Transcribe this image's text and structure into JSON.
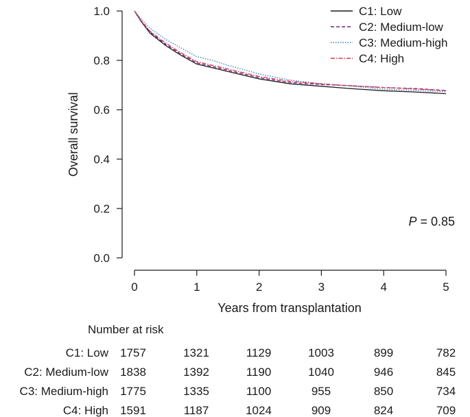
{
  "chart_data": {
    "type": "line",
    "subtype": "kaplan-meier",
    "xlabel": "Years from transplantation",
    "ylabel": "Overall survival",
    "xlim": [
      0,
      5
    ],
    "ylim": [
      0,
      1
    ],
    "xticks": [
      "0",
      "1",
      "2",
      "3",
      "4",
      "5"
    ],
    "yticks": [
      "0.0",
      "0.2",
      "0.4",
      "0.6",
      "0.8",
      "1.0"
    ],
    "legend_position": "top-right",
    "annotation": {
      "italic": "P",
      "text": " = 0.85"
    },
    "series": [
      {
        "name": "C1: Low",
        "color": "#1a1a1a",
        "style": "solid",
        "x": [
          0,
          0.1,
          0.25,
          0.5,
          0.75,
          1.0,
          1.25,
          1.5,
          2.0,
          2.5,
          3.0,
          3.5,
          4.0,
          4.5,
          5.0
        ],
        "y": [
          1.0,
          0.96,
          0.91,
          0.86,
          0.82,
          0.785,
          0.77,
          0.755,
          0.725,
          0.705,
          0.695,
          0.685,
          0.677,
          0.672,
          0.665
        ]
      },
      {
        "name": "C2: Medium-low",
        "color": "#7a1f7a",
        "style": "dashed",
        "x": [
          0,
          0.1,
          0.25,
          0.5,
          0.75,
          1.0,
          1.25,
          1.5,
          2.0,
          2.5,
          3.0,
          3.5,
          4.0,
          4.5,
          5.0
        ],
        "y": [
          1.0,
          0.962,
          0.915,
          0.865,
          0.825,
          0.79,
          0.775,
          0.76,
          0.73,
          0.71,
          0.702,
          0.697,
          0.69,
          0.686,
          0.678
        ]
      },
      {
        "name": "C3: Medium-high",
        "color": "#2f7fc1",
        "style": "dotted",
        "x": [
          0,
          0.1,
          0.25,
          0.5,
          0.75,
          1.0,
          1.25,
          1.5,
          2.0,
          2.5,
          3.0,
          3.5,
          4.0,
          4.5,
          5.0
        ],
        "y": [
          1.0,
          0.97,
          0.93,
          0.885,
          0.85,
          0.815,
          0.8,
          0.78,
          0.745,
          0.72,
          0.705,
          0.695,
          0.683,
          0.678,
          0.673
        ]
      },
      {
        "name": "C4: High",
        "color": "#d6334f",
        "style": "dashdot",
        "x": [
          0,
          0.1,
          0.25,
          0.5,
          0.75,
          1.0,
          1.25,
          1.5,
          2.0,
          2.5,
          3.0,
          3.5,
          4.0,
          4.5,
          5.0
        ],
        "y": [
          1.0,
          0.963,
          0.918,
          0.87,
          0.83,
          0.795,
          0.78,
          0.765,
          0.735,
          0.715,
          0.705,
          0.697,
          0.69,
          0.684,
          0.677
        ]
      }
    ],
    "risk_table": {
      "title": "Number at risk",
      "rows": [
        {
          "label": "C1: Low",
          "values": [
            "1757",
            "1321",
            "1129",
            "1003",
            "899",
            "782"
          ]
        },
        {
          "label": "C2: Medium-low",
          "values": [
            "1838",
            "1392",
            "1190",
            "1040",
            "946",
            "845"
          ]
        },
        {
          "label": "C3: Medium-high",
          "values": [
            "1775",
            "1335",
            "1100",
            "955",
            "850",
            "734"
          ]
        },
        {
          "label": "C4: High",
          "values": [
            "1591",
            "1187",
            "1024",
            "909",
            "824",
            "709"
          ]
        }
      ]
    }
  }
}
